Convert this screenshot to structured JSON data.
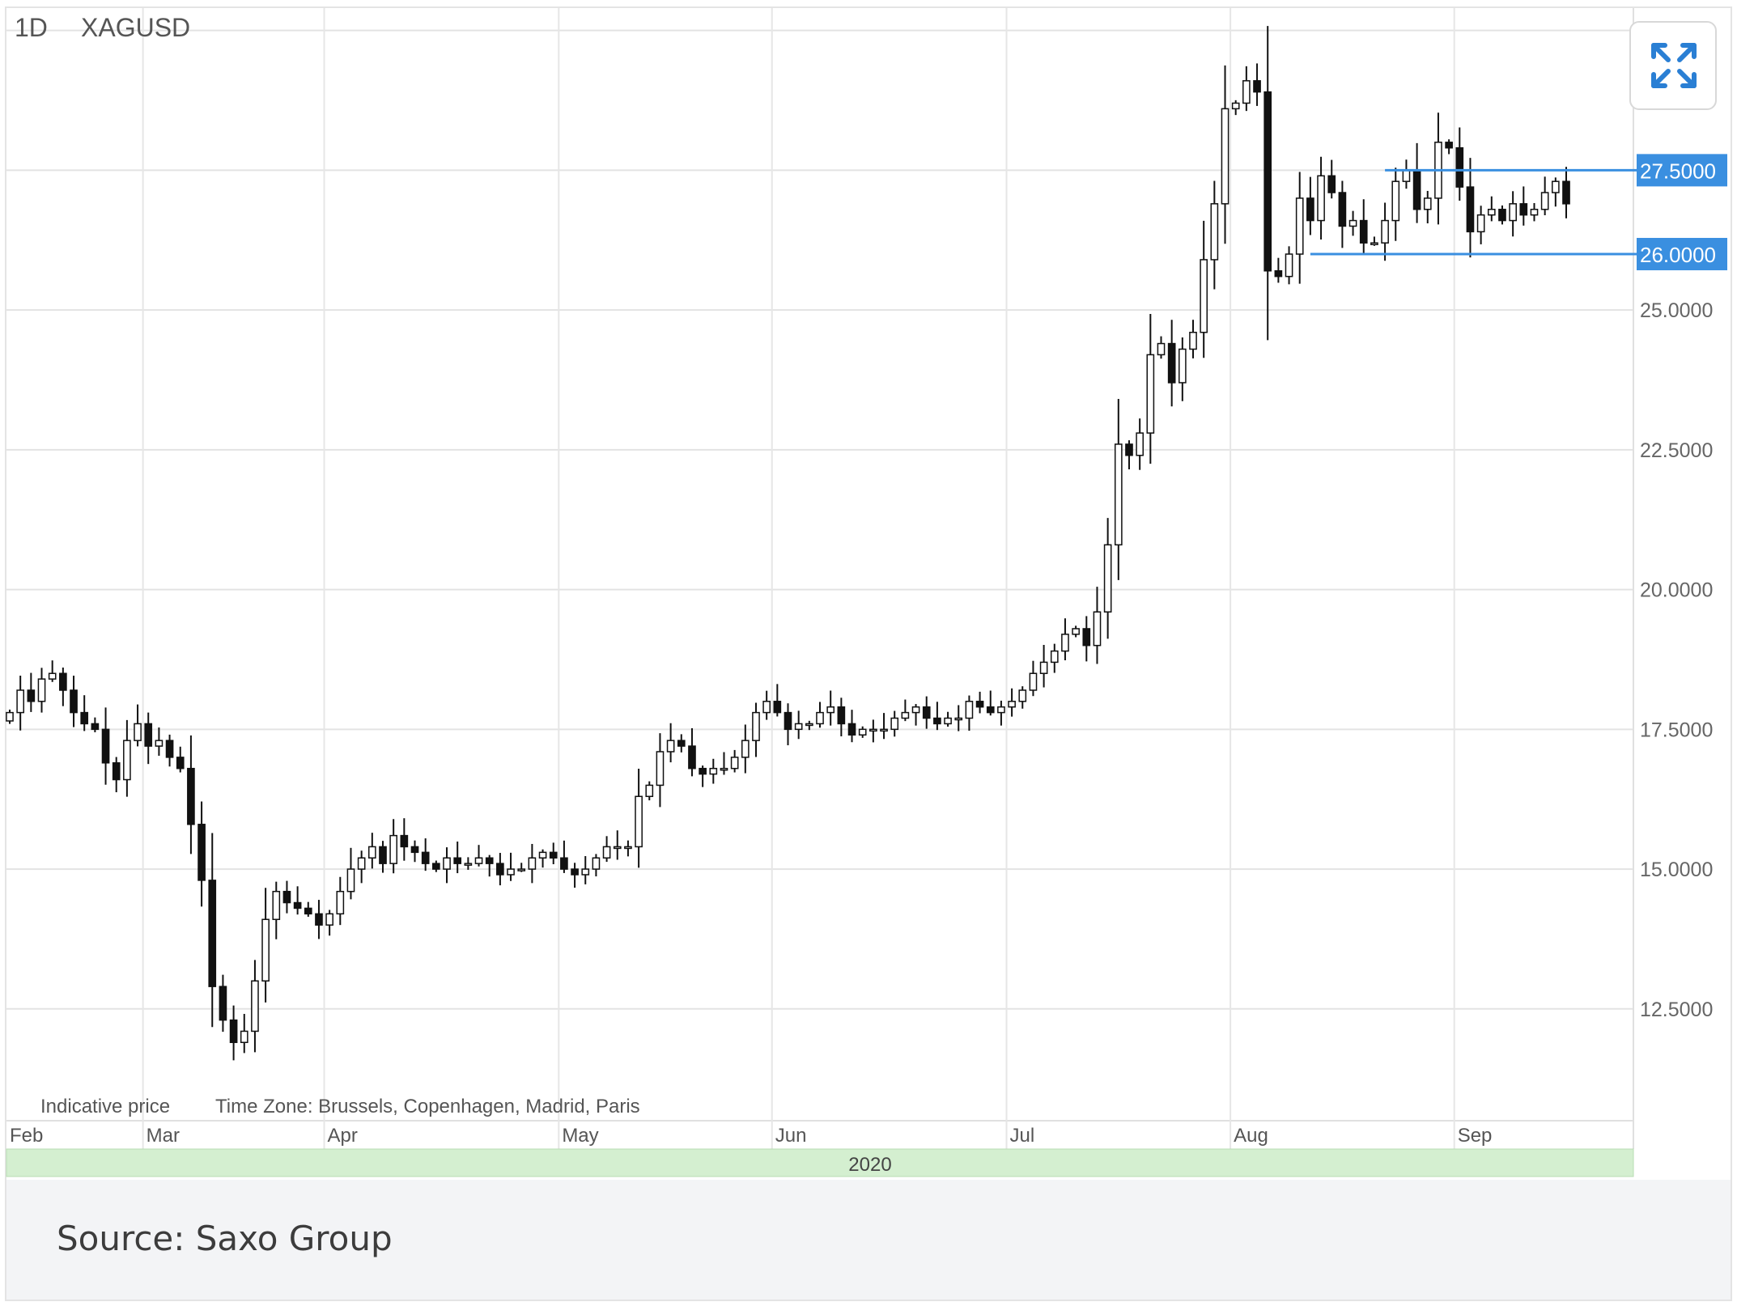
{
  "header": {
    "timeframe": "1D",
    "symbol": "XAGUSD"
  },
  "footnote": {
    "indicative": "Indicative price",
    "timezone": "Time Zone: Brussels, Copenhagen, Madrid, Paris"
  },
  "caption": "Source: Saxo Group",
  "expand_icon": "expand-arrows-icon",
  "colors": {
    "accent": "#3a8fe0",
    "year_band": "#d4efd0",
    "candle": "#111111"
  },
  "chart_data": {
    "type": "candlestick",
    "title": "",
    "symbol": "XAGUSD",
    "timeframe": "1D",
    "ylim": [
      10.5,
      30.4
    ],
    "y_ticks": [
      "12.5000",
      "15.0000",
      "17.5000",
      "20.0000",
      "22.5000",
      "25.0000"
    ],
    "y_tick_values": [
      12.5,
      15.0,
      17.5,
      20.0,
      22.5,
      25.0
    ],
    "x_tick_labels": [
      "Feb",
      "Mar",
      "Apr",
      "May",
      "Jun",
      "Jul",
      "Aug",
      "Sep"
    ],
    "year_label": "2020",
    "grid": true,
    "horizontal_levels": [
      {
        "value": 27.5,
        "label": "27.5000"
      },
      {
        "value": 26.0,
        "label": "26.0000"
      }
    ],
    "series": [
      {
        "name": "Feb",
        "close": [
          17.8,
          18.2,
          18.0,
          18.4,
          18.5,
          18.2,
          17.8,
          17.6,
          17.5,
          16.9,
          16.6,
          17.3,
          17.6
        ]
      },
      {
        "name": "Mar",
        "close": [
          17.2,
          17.3,
          17.0,
          16.8,
          15.8,
          14.8,
          12.9,
          12.3,
          11.9,
          12.1,
          13.0,
          14.1,
          14.6,
          14.4,
          14.3,
          14.2,
          14.0
        ]
      },
      {
        "name": "Apr",
        "close": [
          14.2,
          14.6,
          15.0,
          15.2,
          15.4,
          15.1,
          15.6,
          15.4,
          15.3,
          15.1,
          15.0,
          15.2,
          15.1,
          15.1,
          15.2,
          15.1,
          14.9,
          15.0,
          15.0,
          15.2,
          15.3,
          15.2
        ]
      },
      {
        "name": "May",
        "close": [
          15.0,
          14.9,
          15.0,
          15.2,
          15.4,
          15.4,
          15.4,
          16.3,
          16.5,
          17.1,
          17.3,
          17.2,
          16.8,
          16.7,
          16.8,
          16.8,
          17.0,
          17.3,
          17.8,
          18.0
        ]
      },
      {
        "name": "Jun",
        "close": [
          17.8,
          17.5,
          17.6,
          17.6,
          17.8,
          17.9,
          17.6,
          17.4,
          17.5,
          17.5,
          17.5,
          17.7,
          17.8,
          17.9,
          17.7,
          17.6,
          17.7,
          17.7,
          18.0,
          17.9,
          17.8,
          17.9
        ]
      },
      {
        "name": "Jul",
        "close": [
          18.0,
          18.2,
          18.5,
          18.7,
          18.9,
          19.2,
          19.3,
          19.0,
          19.6,
          20.8,
          22.6,
          22.4,
          22.8,
          24.2,
          24.4,
          23.7,
          24.3,
          24.6,
          25.9,
          26.9,
          28.6
        ]
      },
      {
        "name": "Aug",
        "close": [
          28.7,
          29.1,
          28.9,
          25.7,
          25.6,
          26.0,
          27.0,
          26.6,
          27.4,
          27.1,
          26.5,
          26.6,
          26.2,
          26.2,
          26.6,
          27.3,
          27.5,
          26.8,
          27.0,
          28.0,
          27.9
        ]
      },
      {
        "name": "Sep",
        "close": [
          27.2,
          26.4,
          26.7,
          26.8,
          26.6,
          26.9,
          26.7,
          26.8,
          27.1,
          27.3,
          26.9
        ]
      }
    ]
  }
}
